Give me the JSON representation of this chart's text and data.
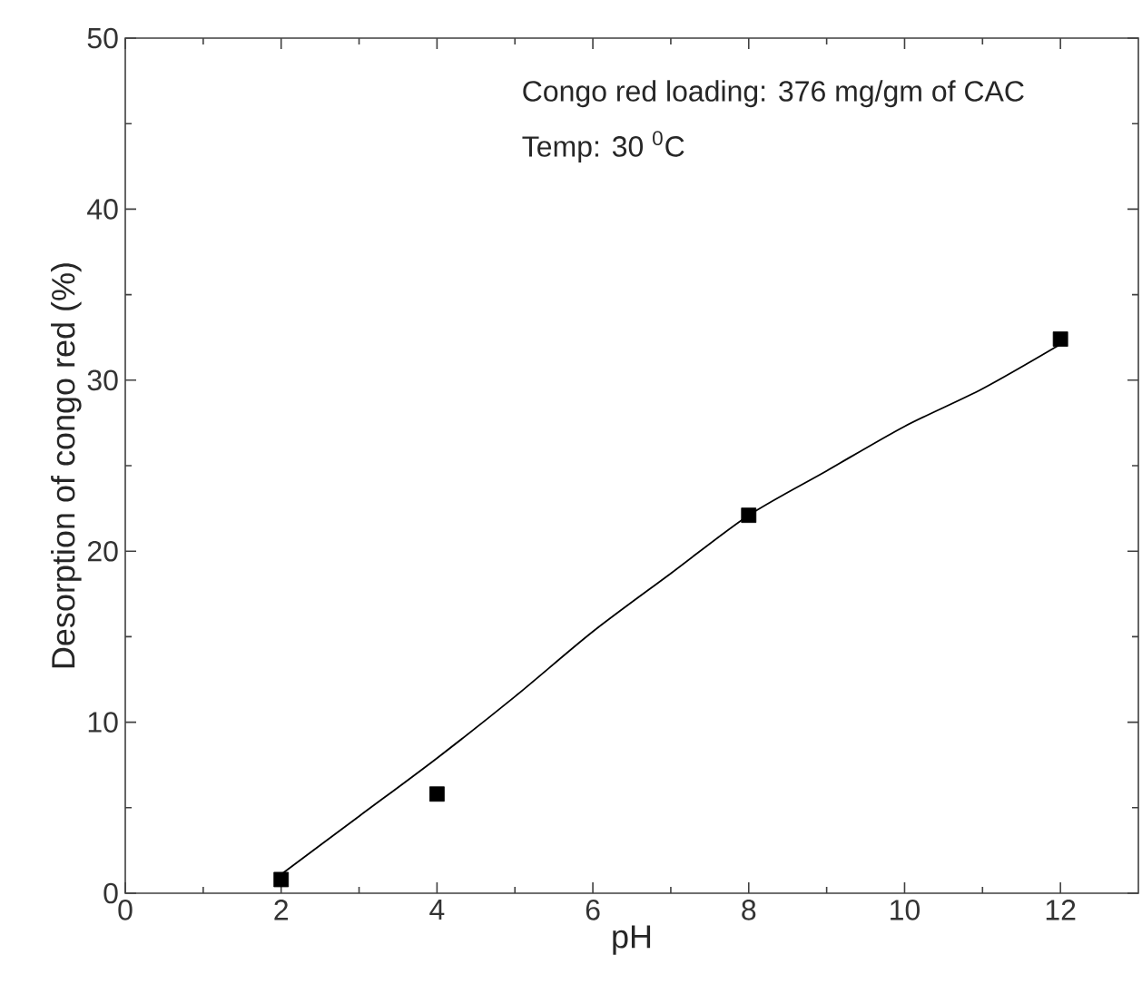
{
  "chart_data": {
    "type": "scatter",
    "xlabel": "pH",
    "ylabel": "Desorption of congo red (%)",
    "annotations": [
      "Congo red loading: 376 mg/gm of CAC",
      "Temp: 30 $^{0}$C"
    ],
    "xlim": [
      0,
      13
    ],
    "ylim": [
      0,
      50
    ],
    "xticks": [
      0,
      2,
      4,
      6,
      8,
      10,
      12
    ],
    "yticks": [
      0,
      10,
      20,
      30,
      40,
      50
    ],
    "grid": false,
    "series": [
      {
        "marker": "square",
        "color": "#000000",
        "x": [
          2,
          4,
          8,
          12
        ],
        "values": [
          0.8,
          5.8,
          22.1,
          32.4
        ]
      },
      {
        "type": "line",
        "marker": "none",
        "line_style": "solid",
        "color": "#000000",
        "x": [
          2,
          3,
          4,
          5,
          6,
          7,
          8,
          9,
          10,
          11,
          12
        ],
        "values": [
          1.1,
          4.5,
          7.9,
          11.5,
          15.3,
          18.7,
          22.1,
          24.7,
          27.3,
          29.5,
          32.1
        ]
      }
    ]
  }
}
